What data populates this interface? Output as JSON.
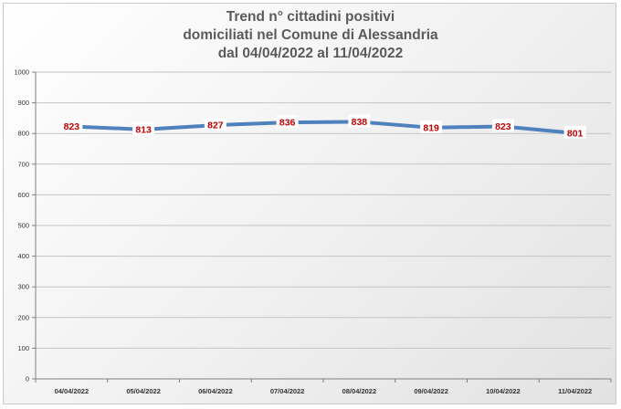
{
  "chart_data": {
    "type": "line",
    "title_lines": [
      "Trend n° cittadini positivi",
      "domiciliati nel Comune di Alessandria",
      "dal 04/04/2022 al 11/04/2022"
    ],
    "xlabel": "",
    "ylabel": "",
    "categories": [
      "04/04/2022",
      "05/04/2022",
      "06/04/2022",
      "07/04/2022",
      "08/04/2022",
      "09/04/2022",
      "10/04/2022",
      "11/04/2022"
    ],
    "series": [
      {
        "values": [
          823,
          813,
          827,
          836,
          838,
          819,
          823,
          801
        ],
        "color": "#4f81bd"
      }
    ],
    "ylim": [
      0,
      1000
    ],
    "yticks": [
      0,
      100,
      200,
      300,
      400,
      500,
      600,
      700,
      800,
      900,
      1000
    ],
    "grid": true,
    "legend": "none",
    "data_label_color": "#c00000"
  }
}
